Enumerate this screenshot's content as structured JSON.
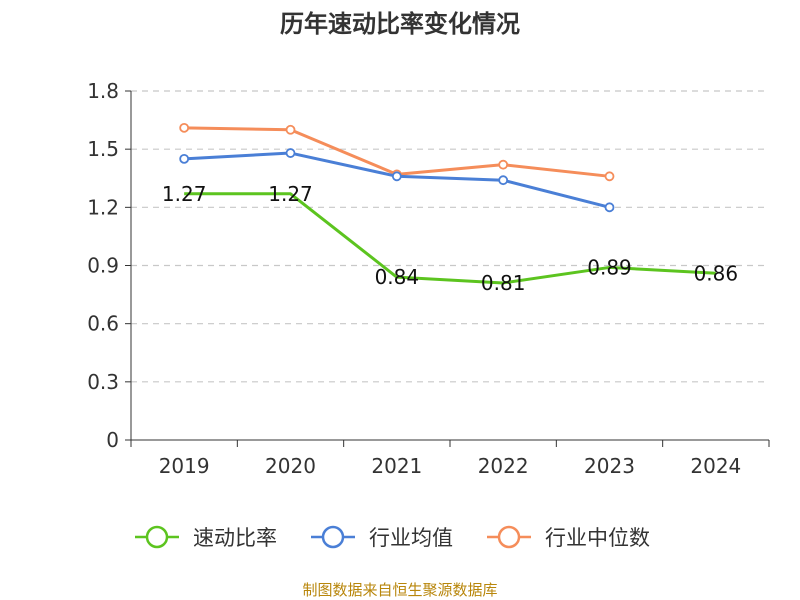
{
  "chart_data": {
    "type": "line",
    "title": "历年速动比率变化情况",
    "categories": [
      "2019",
      "2020",
      "2021",
      "2022",
      "2023",
      "2024"
    ],
    "ylim": [
      0,
      1.8
    ],
    "yticks": [
      "0",
      "0.3",
      "0.6",
      "0.9",
      "1.2",
      "1.5",
      "1.8"
    ],
    "grid": true,
    "legend_position": "bottom",
    "series": [
      {
        "name": "速动比率",
        "color": "#5cc41f",
        "values": [
          1.27,
          1.27,
          0.84,
          0.81,
          0.89,
          0.86
        ],
        "labels": [
          "1.27",
          "1.27",
          "0.84",
          "0.81",
          "0.89",
          "0.86"
        ]
      },
      {
        "name": "行业均值",
        "color": "#4a7fd6",
        "values": [
          1.45,
          1.48,
          1.36,
          1.34,
          1.2,
          null
        ]
      },
      {
        "name": "行业中位数",
        "color": "#f58d5a",
        "values": [
          1.61,
          1.6,
          1.37,
          1.42,
          1.36,
          null
        ]
      }
    ],
    "source": "制图数据来自恒生聚源数据库"
  }
}
